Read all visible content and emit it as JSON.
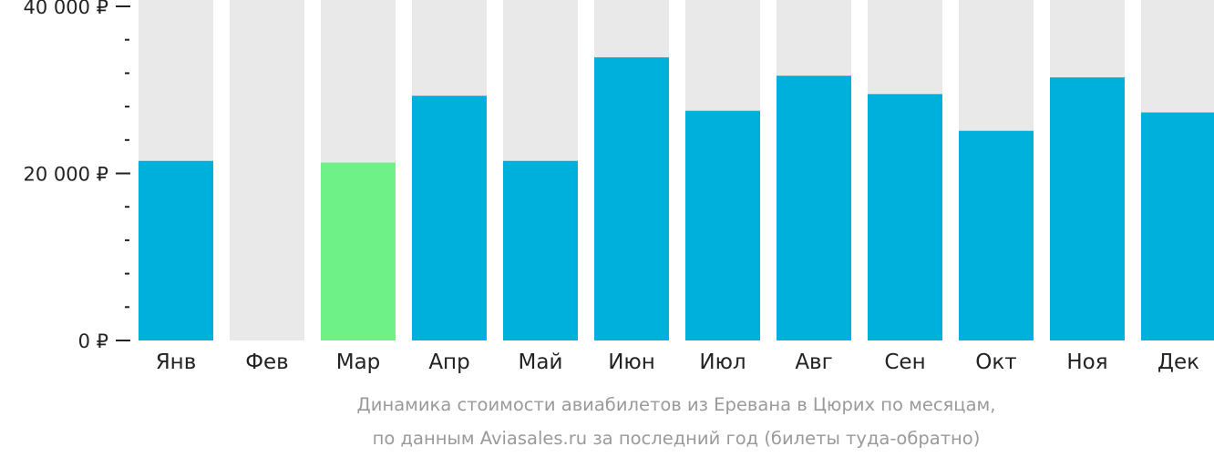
{
  "chart_data": {
    "type": "bar",
    "categories": [
      "Янв",
      "Фев",
      "Мар",
      "Апр",
      "Май",
      "Июн",
      "Июл",
      "Авг",
      "Сен",
      "Окт",
      "Ноя",
      "Дек"
    ],
    "values": [
      21500,
      null,
      21300,
      29300,
      21500,
      33900,
      27500,
      31700,
      29500,
      25100,
      31500,
      27300
    ],
    "ylim": [
      0,
      40000
    ],
    "yticks": [
      {
        "value": 0,
        "label": "0 ₽"
      },
      {
        "value": 20000,
        "label": "20 000 ₽"
      },
      {
        "value": 40000,
        "label": "40 000 ₽"
      }
    ],
    "minor_tick_step": 4000,
    "caption": [
      "Динамика стоимости авиабилетов из Еревана в Цюрих по месяцам,",
      "по данным Aviasales.ru за последний год (билеты туда-обратно)"
    ],
    "highlight_index": 2,
    "colors": {
      "bar": "#00b0dc",
      "highlight": "#6ef287",
      "background_bar": "#e9e9e9",
      "tick": "#222222",
      "caption": "#9a9a9a"
    }
  }
}
